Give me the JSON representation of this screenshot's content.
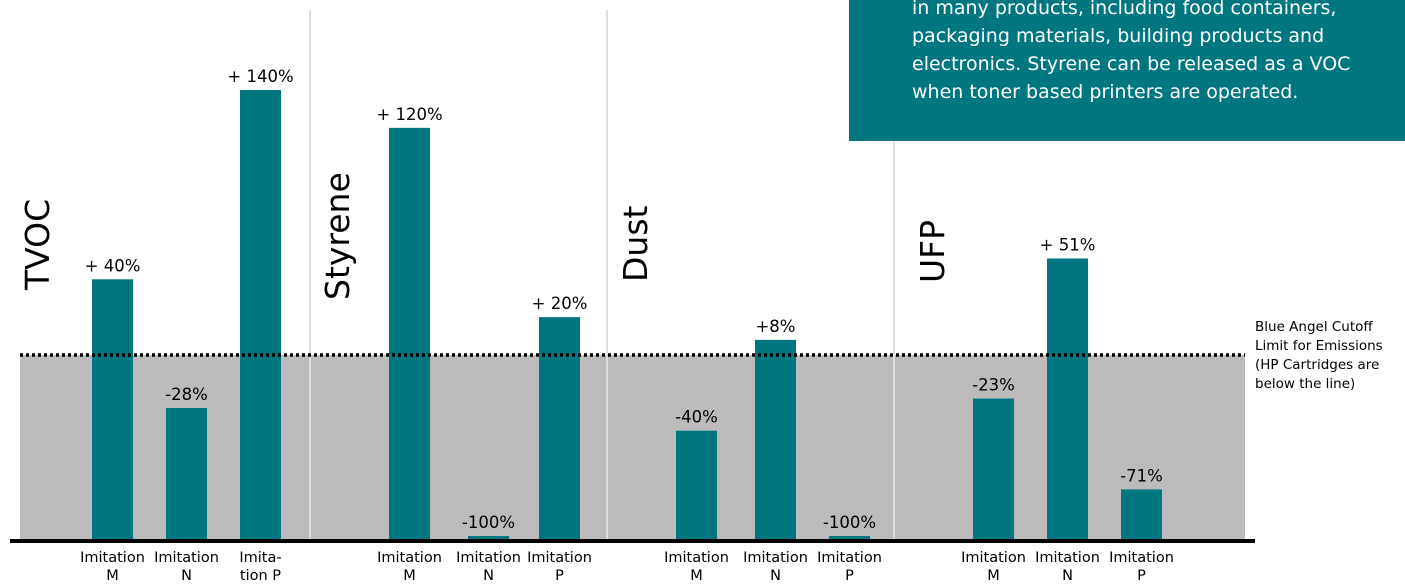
{
  "colors": {
    "bar": "#007681",
    "below_cutoff_band": "#bcbabb",
    "info_box": "#007681",
    "divider": "#dedede"
  },
  "info_box": {
    "text": "in many products, including food containers,\npackaging materials, building products and\nelectronics. Styrene can be released as a VOC\nwhen toner based printers are operated."
  },
  "cutoff_note": "Blue Angel Cutoff\nLimit for Emissions\n(HP Cartridges are\nbelow the line)",
  "chart_data": [
    {
      "type": "bar",
      "title": "TVOC",
      "categories": [
        "Imitation M",
        "Imitation N",
        "Imita-tion P"
      ],
      "values": [
        40,
        -28,
        140
      ],
      "data_labels": [
        "+ 40%",
        "-28%",
        "+ 140%"
      ]
    },
    {
      "type": "bar",
      "title": "Styrene",
      "categories": [
        "Imitation M",
        "Imitation N",
        "Imitation P"
      ],
      "values": [
        120,
        -100,
        20
      ],
      "data_labels": [
        "+ 120%",
        "-100%",
        "+ 20%"
      ]
    },
    {
      "type": "bar",
      "title": "Dust",
      "categories": [
        "Imitation M",
        "Imitation N",
        "Imitation P"
      ],
      "values": [
        -40,
        8,
        -100
      ],
      "data_labels": [
        "-40%",
        "+8%",
        "-100%"
      ]
    },
    {
      "type": "bar",
      "title": "UFP",
      "categories": [
        "Imitation M",
        "Imitation N",
        "Imitation P"
      ],
      "values": [
        -23,
        51,
        -71
      ],
      "data_labels": [
        "-23%",
        "+ 51%",
        "-71%"
      ]
    }
  ],
  "category_label_lines": [
    [
      [
        "Imitation",
        "M"
      ],
      [
        "Imitation",
        "N"
      ],
      [
        "Imita-",
        "tion P"
      ]
    ],
    [
      [
        "Imitation",
        "M"
      ],
      [
        "Imitation",
        "N"
      ],
      [
        "Imitation",
        "P"
      ]
    ],
    [
      [
        "Imitation",
        "M"
      ],
      [
        "Imitation",
        "N"
      ],
      [
        "Imitation",
        "P"
      ]
    ],
    [
      [
        "Imitation",
        "M"
      ],
      [
        "Imitation",
        "N"
      ],
      [
        "Imitation",
        "P"
      ]
    ]
  ]
}
